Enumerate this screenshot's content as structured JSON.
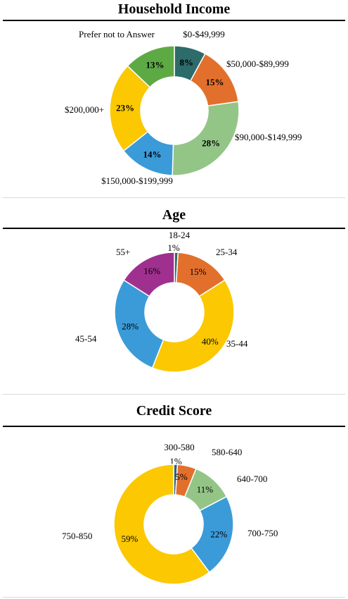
{
  "chart_data": [
    {
      "type": "pie",
      "title": "Household Income",
      "categories": [
        "$0-$49,999",
        "$50,000-$89,999",
        "$90,000-$149,999",
        "$150,000-$199,999",
        "$200,000+",
        "Prefer not to Answer"
      ],
      "values": [
        8,
        15,
        28,
        14,
        23,
        13
      ],
      "value_labels": [
        "8%",
        "15%",
        "28%",
        "14%",
        "23%",
        "13%"
      ],
      "colors": [
        "#2e6b6b",
        "#e2702c",
        "#93c587",
        "#3b9bd8",
        "#fbc802",
        "#5daa45"
      ],
      "donut": true,
      "bold_labels": true
    },
    {
      "type": "pie",
      "title": "Age",
      "categories": [
        "18-24",
        "25-34",
        "35-44",
        "45-54",
        "55+"
      ],
      "values": [
        1,
        15,
        40,
        28,
        16
      ],
      "value_labels": [
        "1%",
        "15%",
        "40%",
        "28%",
        "16%"
      ],
      "colors": [
        "#2e6b6b",
        "#e2702c",
        "#fbc802",
        "#3b9bd8",
        "#a0308f"
      ],
      "donut": true,
      "bold_labels": false
    },
    {
      "type": "pie",
      "title": "Credit Score",
      "categories": [
        "300-580",
        "580-640",
        "640-700",
        "700-750",
        "750-850"
      ],
      "values": [
        1,
        5,
        11,
        22,
        59
      ],
      "value_labels": [
        "1%",
        "5%",
        "11%",
        "22%",
        "59%"
      ],
      "colors": [
        "#2e5e7e",
        "#e2702c",
        "#93c587",
        "#3b9bd8",
        "#fbc802"
      ],
      "donut": true,
      "bold_labels": false
    }
  ]
}
